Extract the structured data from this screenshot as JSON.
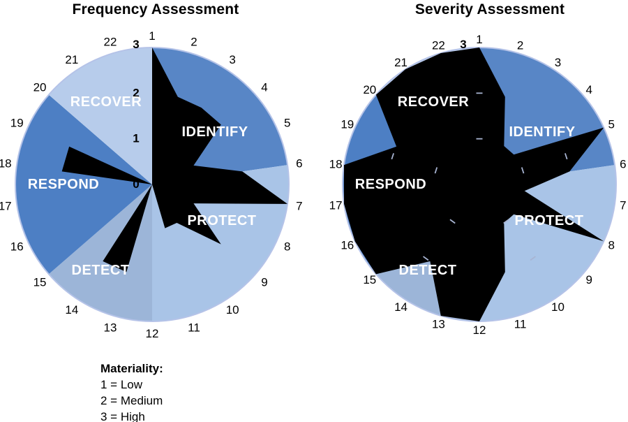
{
  "figure": {
    "background": "#ffffff"
  },
  "titles": {
    "left": "Frequency Assessment",
    "right": "Severity Assessment"
  },
  "legend": {
    "heading": "Materiality:",
    "items": [
      "1 = Low",
      "2 = Medium",
      "3 = High"
    ]
  },
  "chart_data": [
    {
      "type": "radar",
      "title": "Frequency Assessment",
      "max": 3,
      "scale_labels": [
        "0",
        "1",
        "2",
        "3"
      ],
      "categories": [
        "1",
        "2",
        "3",
        "4",
        "5",
        "6",
        "7",
        "8",
        "9",
        "10",
        "11",
        "12",
        "13",
        "14",
        "15",
        "16",
        "17",
        "18",
        "19",
        "20",
        "21",
        "22"
      ],
      "values": [
        3,
        2,
        2,
        2,
        1,
        2,
        3,
        1,
        2,
        1,
        1,
        0,
        2,
        2,
        0,
        0,
        0,
        2,
        2,
        0,
        0,
        0
      ],
      "groups": [
        {
          "name": "IDENTIFY",
          "cats": [
            1,
            5
          ],
          "color": "#5886c6"
        },
        {
          "name": "PROTECT",
          "cats": [
            6,
            11
          ],
          "color": "#a9c4e7"
        },
        {
          "name": "DETECT",
          "cats": [
            12,
            14
          ],
          "color": "#9cb5d8"
        },
        {
          "name": "RESPOND",
          "cats": [
            15,
            19
          ],
          "color": "#4d7fc4"
        },
        {
          "name": "RECOVER",
          "cats": [
            20,
            22
          ],
          "color": "#b7cceb"
        }
      ],
      "polygon_color": "#000000",
      "rim_color": "#b5c3e8",
      "show_scale_ticks": false
    },
    {
      "type": "radar",
      "title": "Severity Assessment",
      "max": 3,
      "scale_labels": [
        "0",
        "1",
        "2",
        "3"
      ],
      "categories": [
        "1",
        "2",
        "3",
        "4",
        "5",
        "6",
        "7",
        "8",
        "9",
        "10",
        "11",
        "12",
        "13",
        "14",
        "15",
        "16",
        "17",
        "18",
        "19",
        "20",
        "21",
        "22"
      ],
      "values": [
        3,
        2,
        1,
        1,
        3,
        2,
        1,
        3,
        1,
        1,
        2,
        3,
        3,
        2,
        3,
        3,
        3,
        3,
        2,
        3,
        3,
        3
      ],
      "groups": [
        {
          "name": "IDENTIFY",
          "cats": [
            1,
            5
          ],
          "color": "#5886c6"
        },
        {
          "name": "PROTECT",
          "cats": [
            6,
            11
          ],
          "color": "#a9c4e7"
        },
        {
          "name": "DETECT",
          "cats": [
            12,
            14
          ],
          "color": "#9cb5d8"
        },
        {
          "name": "RESPOND",
          "cats": [
            15,
            19
          ],
          "color": "#4d7fc4"
        },
        {
          "name": "RECOVER",
          "cats": [
            20,
            22
          ],
          "color": "#b7cceb"
        }
      ],
      "polygon_color": "#000000",
      "rim_color": "#b5c3e8",
      "show_scale_ticks": true,
      "tick_color": "#a8b4d2"
    }
  ]
}
